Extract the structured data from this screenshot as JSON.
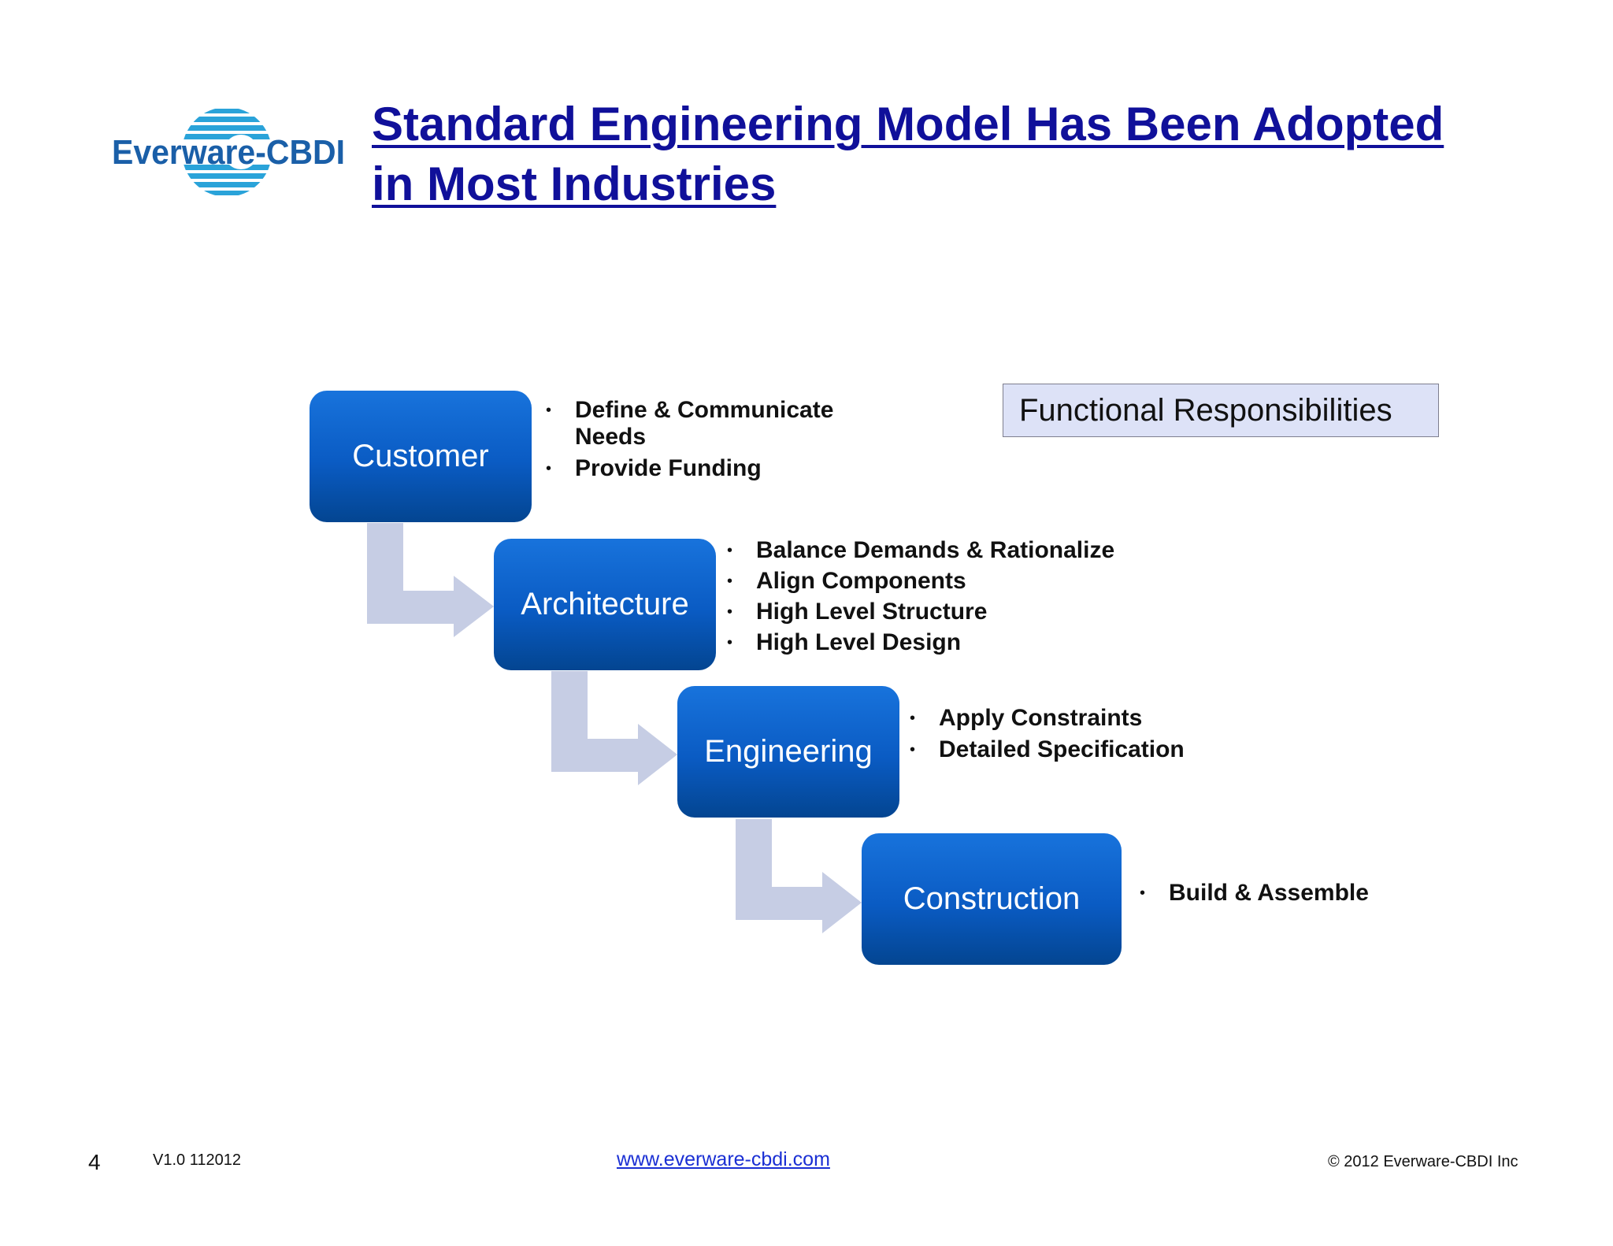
{
  "header": {
    "logo_text": "Everware-CBDI",
    "title_line1": "Standard Engineering Model Has Been Adopted",
    "title_line2": "in Most Industries"
  },
  "legend": {
    "label": "Functional Responsibilities"
  },
  "stages": [
    {
      "label": "Customer",
      "bullets": [
        "Define & Communicate Needs",
        "Provide Funding"
      ]
    },
    {
      "label": "Architecture",
      "bullets": [
        "Balance Demands & Rationalize",
        "Align Components",
        "High Level Structure",
        "High Level Design"
      ]
    },
    {
      "label": "Engineering",
      "bullets": [
        "Apply Constraints",
        "Detailed Specification"
      ]
    },
    {
      "label": "Construction",
      "bullets": [
        "Build & Assemble"
      ]
    }
  ],
  "footer": {
    "page_number": "4",
    "version": "V1.0 112012",
    "website": "www.everware-cbdi.com",
    "copyright": "© 2012 Everware-CBDI Inc"
  },
  "colors": {
    "title": "#10109a",
    "stage_box": "#0a5bc3",
    "arrow": "#c6cde4",
    "legend_box": "#dde2f7",
    "logo_text": "#1a5fa8",
    "logo_stripes": "#2aa3d9"
  }
}
